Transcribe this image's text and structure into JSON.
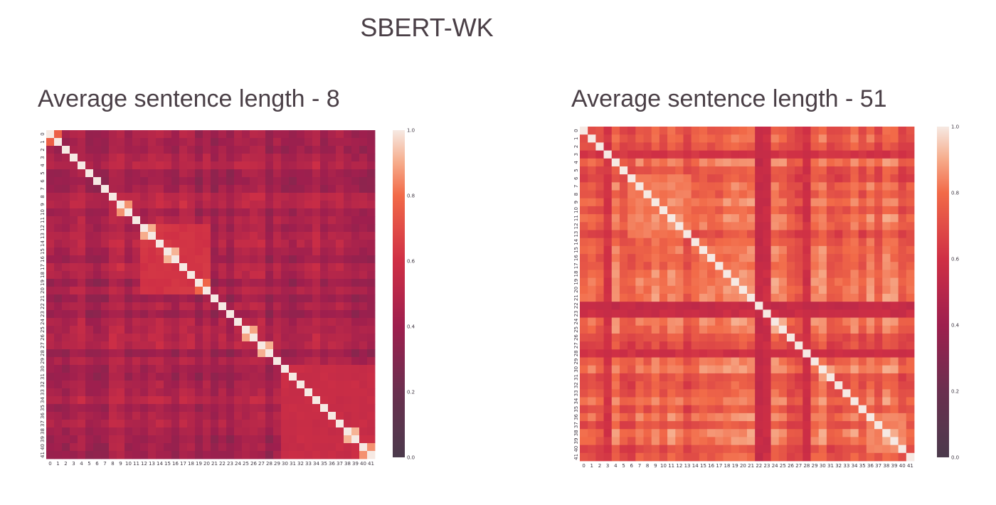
{
  "figure": {
    "suptitle": "SBERT-WK"
  },
  "colormap": {
    "name": "rocket",
    "stops": [
      {
        "v": 0.0,
        "color": "#4b3a4c"
      },
      {
        "v": 0.2,
        "color": "#6a2f4f"
      },
      {
        "v": 0.4,
        "color": "#9e1f4e"
      },
      {
        "v": 0.6,
        "color": "#cf2f45"
      },
      {
        "v": 0.8,
        "color": "#f26a48"
      },
      {
        "v": 0.9,
        "color": "#f6ab8a"
      },
      {
        "v": 1.0,
        "color": "#f6e9e3"
      }
    ]
  },
  "chart_data": [
    {
      "type": "heatmap",
      "title": "Average sentence length - 8",
      "n": 42,
      "xticks": [
        "0",
        "1",
        "2",
        "3",
        "4",
        "5",
        "6",
        "7",
        "8",
        "9",
        "10",
        "11",
        "12",
        "13",
        "14",
        "15",
        "16",
        "17",
        "18",
        "19",
        "20",
        "21",
        "22",
        "23",
        "24",
        "25",
        "26",
        "27",
        "28",
        "29",
        "30",
        "31",
        "32",
        "33",
        "34",
        "35",
        "36",
        "37",
        "38",
        "39",
        "40",
        "41"
      ],
      "yticks": [
        "0",
        "1",
        "2",
        "3",
        "4",
        "5",
        "6",
        "7",
        "8",
        "9",
        "10",
        "11",
        "12",
        "13",
        "14",
        "15",
        "16",
        "17",
        "18",
        "19",
        "20",
        "21",
        "22",
        "23",
        "24",
        "25",
        "26",
        "27",
        "28",
        "29",
        "30",
        "31",
        "32",
        "33",
        "34",
        "35",
        "36",
        "37",
        "38",
        "39",
        "40",
        "41"
      ],
      "vmin": 0.0,
      "vmax": 1.0,
      "base": 0.45,
      "diagonal": 1.0,
      "blocks": [
        {
          "range": [
            0,
            1
          ],
          "value": 0.78
        },
        {
          "range": [
            9,
            10
          ],
          "value": 0.88
        },
        {
          "range": [
            12,
            13
          ],
          "value": 0.9
        },
        {
          "range": [
            15,
            16
          ],
          "value": 0.93
        },
        {
          "range": [
            19,
            20
          ],
          "value": 0.8
        },
        {
          "range": [
            25,
            26
          ],
          "value": 0.88
        },
        {
          "range": [
            27,
            28
          ],
          "value": 0.9
        },
        {
          "range": [
            38,
            39
          ],
          "value": 0.9
        },
        {
          "range": [
            40,
            41
          ],
          "value": 0.88
        },
        {
          "range": [
            12,
            20
          ],
          "value": 0.62
        },
        {
          "range": [
            30,
            41
          ],
          "value": 0.57
        }
      ],
      "colorbar_ticks": [
        "0.0",
        "0.2",
        "0.4",
        "0.6",
        "0.8",
        "1.0"
      ],
      "colorbar_values": [
        0.0,
        0.2,
        0.4,
        0.6,
        0.8,
        1.0
      ]
    },
    {
      "type": "heatmap",
      "title": "Average sentence length - 51",
      "n": 42,
      "xticks": [
        "0",
        "1",
        "2",
        "3",
        "4",
        "5",
        "6",
        "7",
        "8",
        "9",
        "10",
        "11",
        "12",
        "13",
        "14",
        "15",
        "16",
        "17",
        "18",
        "19",
        "20",
        "21",
        "22",
        "23",
        "24",
        "25",
        "26",
        "27",
        "28",
        "29",
        "30",
        "31",
        "32",
        "33",
        "34",
        "35",
        "36",
        "37",
        "38",
        "39",
        "40",
        "41"
      ],
      "yticks": [
        "0",
        "1",
        "2",
        "3",
        "4",
        "5",
        "6",
        "7",
        "8",
        "9",
        "10",
        "11",
        "12",
        "13",
        "14",
        "15",
        "16",
        "17",
        "18",
        "19",
        "20",
        "21",
        "22",
        "23",
        "24",
        "25",
        "26",
        "27",
        "28",
        "29",
        "30",
        "31",
        "32",
        "33",
        "34",
        "35",
        "36",
        "37",
        "38",
        "39",
        "40",
        "41"
      ],
      "vmin": 0.0,
      "vmax": 1.0,
      "base": 0.76,
      "diagonal": 1.0,
      "blocks": [
        {
          "range": [
            24,
            25
          ],
          "value": 0.92
        },
        {
          "range": [
            30,
            31
          ],
          "value": 0.9
        },
        {
          "range": [
            36,
            40
          ],
          "value": 0.84
        },
        {
          "range": [
            6,
            13
          ],
          "value": 0.82
        }
      ],
      "dark_rows": [
        {
          "index": 3,
          "value": 0.62
        },
        {
          "index": 22,
          "value": 0.55
        },
        {
          "index": 23,
          "value": 0.58
        },
        {
          "index": 28,
          "value": 0.6
        }
      ],
      "colorbar_ticks": [
        "0.0",
        "0.2",
        "0.4",
        "0.6",
        "0.8",
        "1.0"
      ],
      "colorbar_values": [
        0.0,
        0.2,
        0.4,
        0.6,
        0.8,
        1.0
      ]
    }
  ]
}
